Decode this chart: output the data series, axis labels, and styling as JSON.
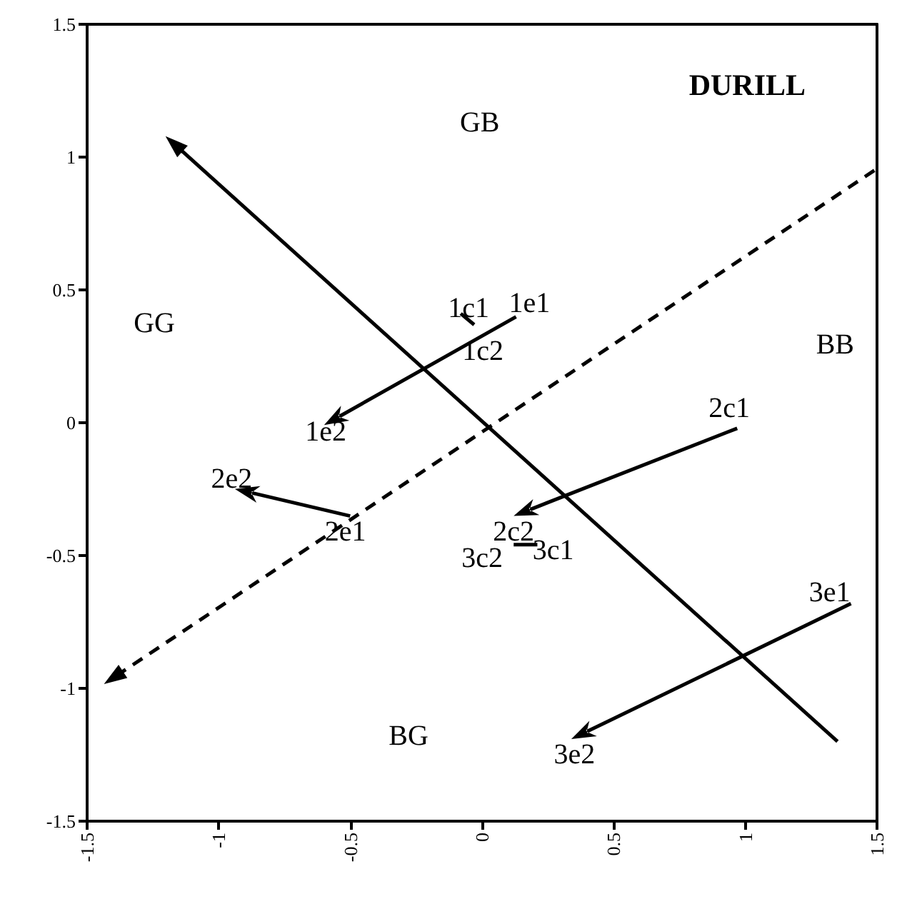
{
  "chart_data": {
    "type": "line",
    "title": "DURILL",
    "xlim": [
      -1.5,
      1.5
    ],
    "xticks": [
      -1.5,
      -1,
      -0.5,
      0,
      0.5,
      1,
      1.5
    ],
    "ylim": [
      -1.5,
      1.5
    ],
    "yticks": [
      -1.5,
      -1,
      -0.5,
      0,
      0.5,
      1,
      1.5
    ],
    "grid": false,
    "line_style": "solid",
    "series": [
      {
        "color": "#000000",
        "x": [
          1.35,
          -1.17
        ],
        "values": [
          -1.2,
          1.05
        ],
        "marker": "triangle"
      },
      {
        "color": "#000000",
        "x": [
          1.49,
          -1.4
        ],
        "values": [
          0.95,
          -0.96
        ],
        "marker": "triangle",
        "line_style": "dashed"
      }
    ],
    "annotations": [
      "GB",
      "GG",
      "BB",
      "BG",
      "1c1",
      "1e1",
      "1c2",
      "1e2",
      "2c1",
      "2e2",
      "2e1",
      "2c2",
      "3c2",
      "3c1",
      "3e1",
      "3e2"
    ]
  }
}
